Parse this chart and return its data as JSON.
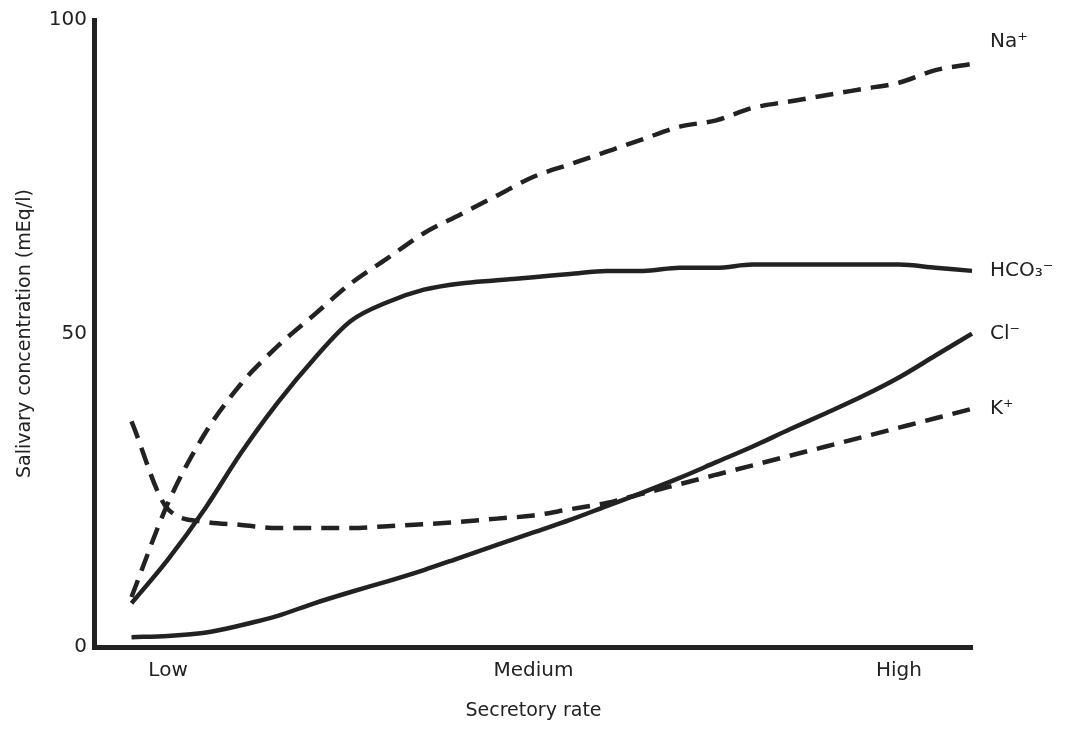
{
  "chart_data": {
    "type": "line",
    "xlabel": "Secretory rate",
    "ylabel": "Salivary concentration (mEq/l)",
    "categories": [
      null,
      null,
      "Low",
      null,
      null,
      null,
      null,
      null,
      null,
      null,
      null,
      null,
      "Medium",
      null,
      null,
      null,
      null,
      null,
      null,
      null,
      null,
      null,
      "High",
      null,
      null
    ],
    "ylim": [
      0,
      100
    ],
    "yticks": [
      0,
      50,
      100
    ],
    "marker": "none",
    "series": [
      {
        "name": "Na⁺",
        "color": "#222222",
        "line_style": "dashed",
        "values": [
          null,
          8,
          23,
          34,
          42,
          48,
          53,
          58,
          62,
          66,
          69,
          72,
          75,
          77,
          79,
          81,
          83,
          84,
          86,
          87,
          88,
          89,
          90,
          92,
          93
        ]
      },
      {
        "name": "HCO₃⁻",
        "color": "#222222",
        "line_style": "solid",
        "values": [
          null,
          7,
          14,
          22,
          31,
          39,
          46,
          52,
          55,
          57,
          58,
          58.5,
          59,
          59.5,
          60,
          60,
          60.5,
          60.5,
          61,
          61,
          61,
          61,
          61,
          60.5,
          60
        ]
      },
      {
        "name": "Cl⁻",
        "color": "#222222",
        "line_style": "solid",
        "values": [
          null,
          1.6,
          1.8,
          2.3,
          3.5,
          5,
          7,
          8.8,
          10.5,
          12.3,
          14.3,
          16.3,
          18.3,
          20.3,
          22.5,
          24.7,
          27,
          29.5,
          32,
          34.7,
          37.3,
          40,
          43,
          46.5,
          50
        ]
      },
      {
        "name": "K⁺",
        "color": "#222222",
        "line_style": "dashed",
        "values": [
          null,
          36,
          22,
          20,
          19.5,
          19,
          19,
          19,
          19.3,
          19.6,
          20,
          20.5,
          21,
          22,
          23,
          24.5,
          26,
          27.5,
          29,
          30.5,
          32,
          33.5,
          35,
          36.5,
          38
        ]
      }
    ]
  }
}
